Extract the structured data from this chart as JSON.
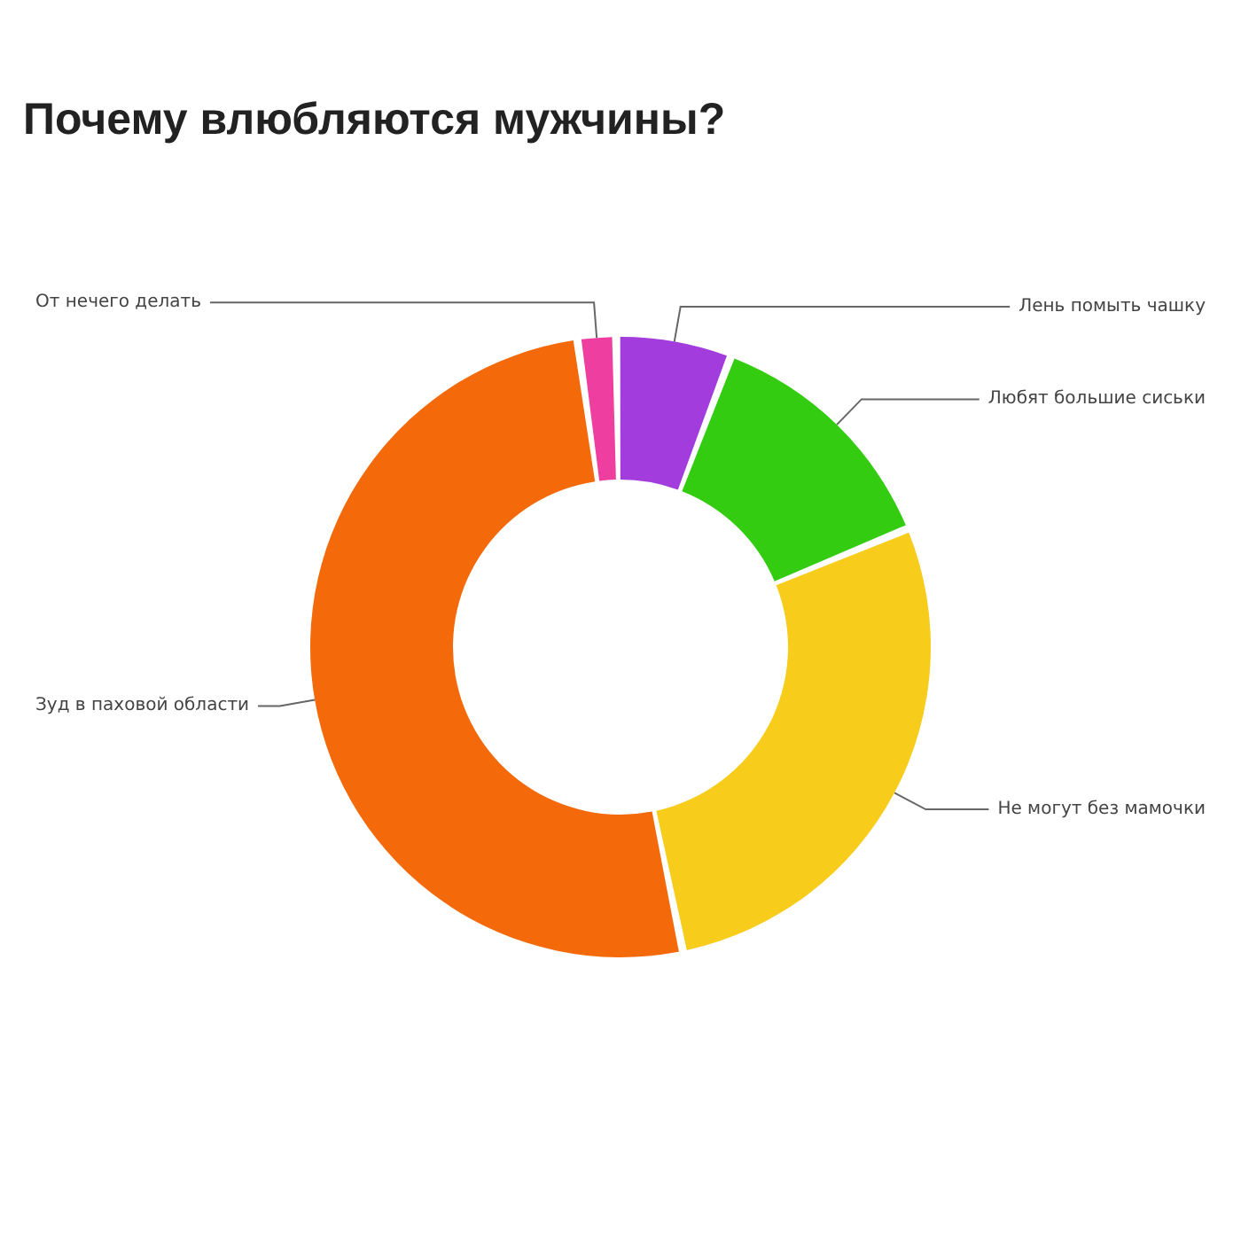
{
  "chart_data": {
    "type": "donut",
    "title": "Почему влюбляются мужчины?",
    "categories": [
      "От нечего делать",
      "Лень помыть чашку",
      "Любят большие сиськи",
      "Не могут без мамочки",
      "Зуд в паховой области"
    ],
    "values": [
      2,
      6,
      13,
      28,
      51
    ],
    "colors": [
      "#ee3fa0",
      "#a23cdc",
      "#33cc11",
      "#f7cc1a",
      "#f46a0a"
    ],
    "legend": false
  }
}
